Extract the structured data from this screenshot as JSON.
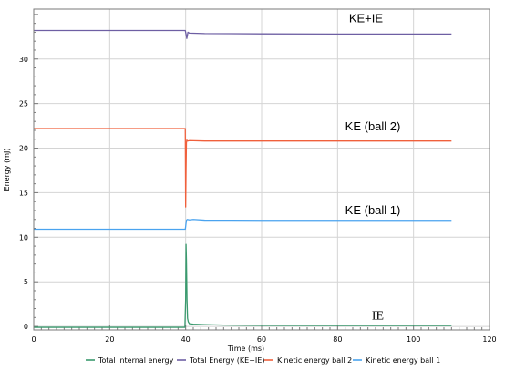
{
  "chart_data": {
    "type": "line",
    "xlabel": "Time (ms)",
    "ylabel": "Energy (mJ)",
    "xlim": [
      0,
      120
    ],
    "ylim": [
      -0.4,
      35.6
    ],
    "x_ticks": [
      0,
      20,
      40,
      60,
      80,
      100,
      120
    ],
    "y_ticks": [
      0,
      5,
      10,
      15,
      20,
      25,
      30
    ],
    "grid": true,
    "legend_position": "bottom",
    "annotations": [
      {
        "text": "KE+IE",
        "x": 83,
        "y": 34.1
      },
      {
        "text": "KE (ball 2)",
        "x": 82,
        "y": 22.0
      },
      {
        "text": "KE (ball 1)",
        "x": 82,
        "y": 12.6
      },
      {
        "text": "IE",
        "x": 89,
        "y": 0.8
      }
    ],
    "series": [
      {
        "name": "Total internal energy",
        "color": "#3a9a6e",
        "x": [
          0,
          39.8,
          40.0,
          40.1,
          40.2,
          40.35,
          40.5,
          40.7,
          41,
          42,
          45,
          50,
          60,
          80,
          110
        ],
        "y": [
          -0.1,
          -0.1,
          3.0,
          9.2,
          7.5,
          3.0,
          0.9,
          0.5,
          0.3,
          0.25,
          0.2,
          0.15,
          0.12,
          0.1,
          0.1
        ]
      },
      {
        "name": "Total Energy (KE+IE)",
        "color": "#6e5fa3",
        "x": [
          0,
          39.9,
          40.1,
          40.3,
          40.6,
          41,
          45,
          60,
          80,
          110
        ],
        "y": [
          33.2,
          33.2,
          32.8,
          32.3,
          33.0,
          32.9,
          32.85,
          32.82,
          32.8,
          32.8
        ]
      },
      {
        "name": "Kinetic energy ball 2",
        "color": "#f0603c",
        "x": [
          0,
          39.9,
          40.0,
          40.1,
          40.2,
          40.3,
          40.5,
          41,
          45,
          60,
          80,
          110
        ],
        "y": [
          22.2,
          22.2,
          13.4,
          17.5,
          20.6,
          20.9,
          20.8,
          20.85,
          20.8,
          20.8,
          20.8,
          20.8
        ]
      },
      {
        "name": "Kinetic energy ball 1",
        "color": "#4aa3ef",
        "x": [
          0,
          39.9,
          40.0,
          40.2,
          40.4,
          41,
          42,
          45,
          60,
          80,
          110
        ],
        "y": [
          10.9,
          10.9,
          11.2,
          11.9,
          12.0,
          11.95,
          12.0,
          11.92,
          11.9,
          11.9,
          11.9
        ]
      }
    ]
  }
}
